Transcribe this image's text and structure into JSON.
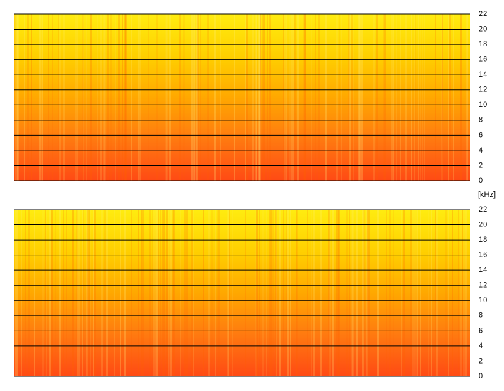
{
  "unit_label": "[kHz]",
  "panels": [
    {
      "ylim": [
        0,
        22
      ],
      "yticks": [
        0,
        2,
        4,
        6,
        8,
        10,
        12,
        14,
        16,
        18,
        20,
        22
      ]
    },
    {
      "ylim": [
        0,
        22
      ],
      "yticks": [
        0,
        2,
        4,
        6,
        8,
        10,
        12,
        14,
        16,
        18,
        20,
        22
      ]
    }
  ]
}
